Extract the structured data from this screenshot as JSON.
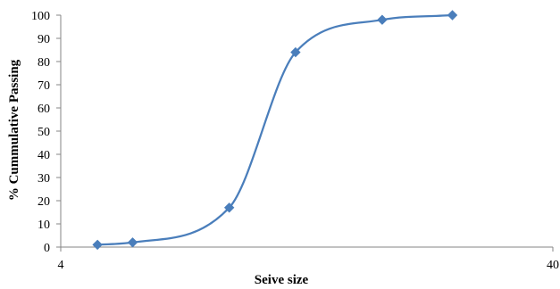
{
  "chart_data": {
    "type": "line",
    "title": "",
    "xlabel": "Seive size",
    "ylabel": "% Cummulative Passing",
    "xscale": "log",
    "xlim": [
      4,
      40
    ],
    "ylim": [
      0,
      100
    ],
    "x_tick_labels": [
      "4",
      "40"
    ],
    "y_tick_labels": [
      "0",
      "10",
      "20",
      "30",
      "40",
      "50",
      "60",
      "70",
      "80",
      "90",
      "100"
    ],
    "grid": false,
    "legend": "none",
    "series": [
      {
        "x": [
          4.75,
          5.6,
          8.8,
          12.0,
          18.0,
          25.0
        ],
        "values": [
          1,
          2,
          17,
          84,
          98,
          100
        ],
        "color": "#4a7ebb",
        "marker": "diamond",
        "smooth": true
      }
    ]
  }
}
